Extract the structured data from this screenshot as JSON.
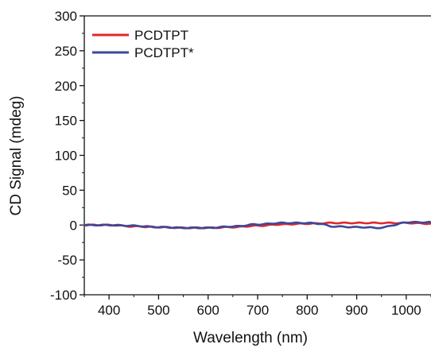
{
  "chart_data": {
    "type": "line",
    "title": "",
    "xlabel": "Wavelength (nm)",
    "ylabel": "CD Signal (mdeg)",
    "xlim": [
      350,
      1050
    ],
    "ylim": [
      -100,
      300
    ],
    "x_ticks": [
      400,
      500,
      600,
      700,
      800,
      900,
      1000
    ],
    "y_ticks": [
      -100,
      -50,
      0,
      50,
      100,
      150,
      200,
      250,
      300
    ],
    "x_tick_labels": [
      "400",
      "500",
      "600",
      "700",
      "800",
      "900",
      "1000"
    ],
    "y_tick_labels": [
      "-100",
      "-50",
      "0",
      "50",
      "100",
      "150",
      "200",
      "250",
      "300"
    ],
    "grid": false,
    "legend_position": "top-left",
    "series": [
      {
        "name": "PCDTPT",
        "color": "#e0282b",
        "x": [
          350,
          400,
          450,
          500,
          550,
          600,
          650,
          700,
          750,
          800,
          850,
          900,
          950,
          1000,
          1050
        ],
        "y": [
          0,
          0,
          -2,
          -3,
          -4,
          -4,
          -3,
          -1,
          1,
          2,
          3,
          3,
          3,
          3,
          2
        ]
      },
      {
        "name": "PCDTPT*",
        "color": "#3a4a9a",
        "x": [
          350,
          400,
          450,
          500,
          550,
          600,
          650,
          700,
          750,
          800,
          825,
          850,
          900,
          950,
          975,
          1000,
          1050
        ],
        "y": [
          0,
          0,
          -1,
          -3,
          -4,
          -4,
          -2,
          1,
          3,
          3,
          2,
          -2,
          -3,
          -4,
          0,
          4,
          4
        ]
      }
    ]
  }
}
